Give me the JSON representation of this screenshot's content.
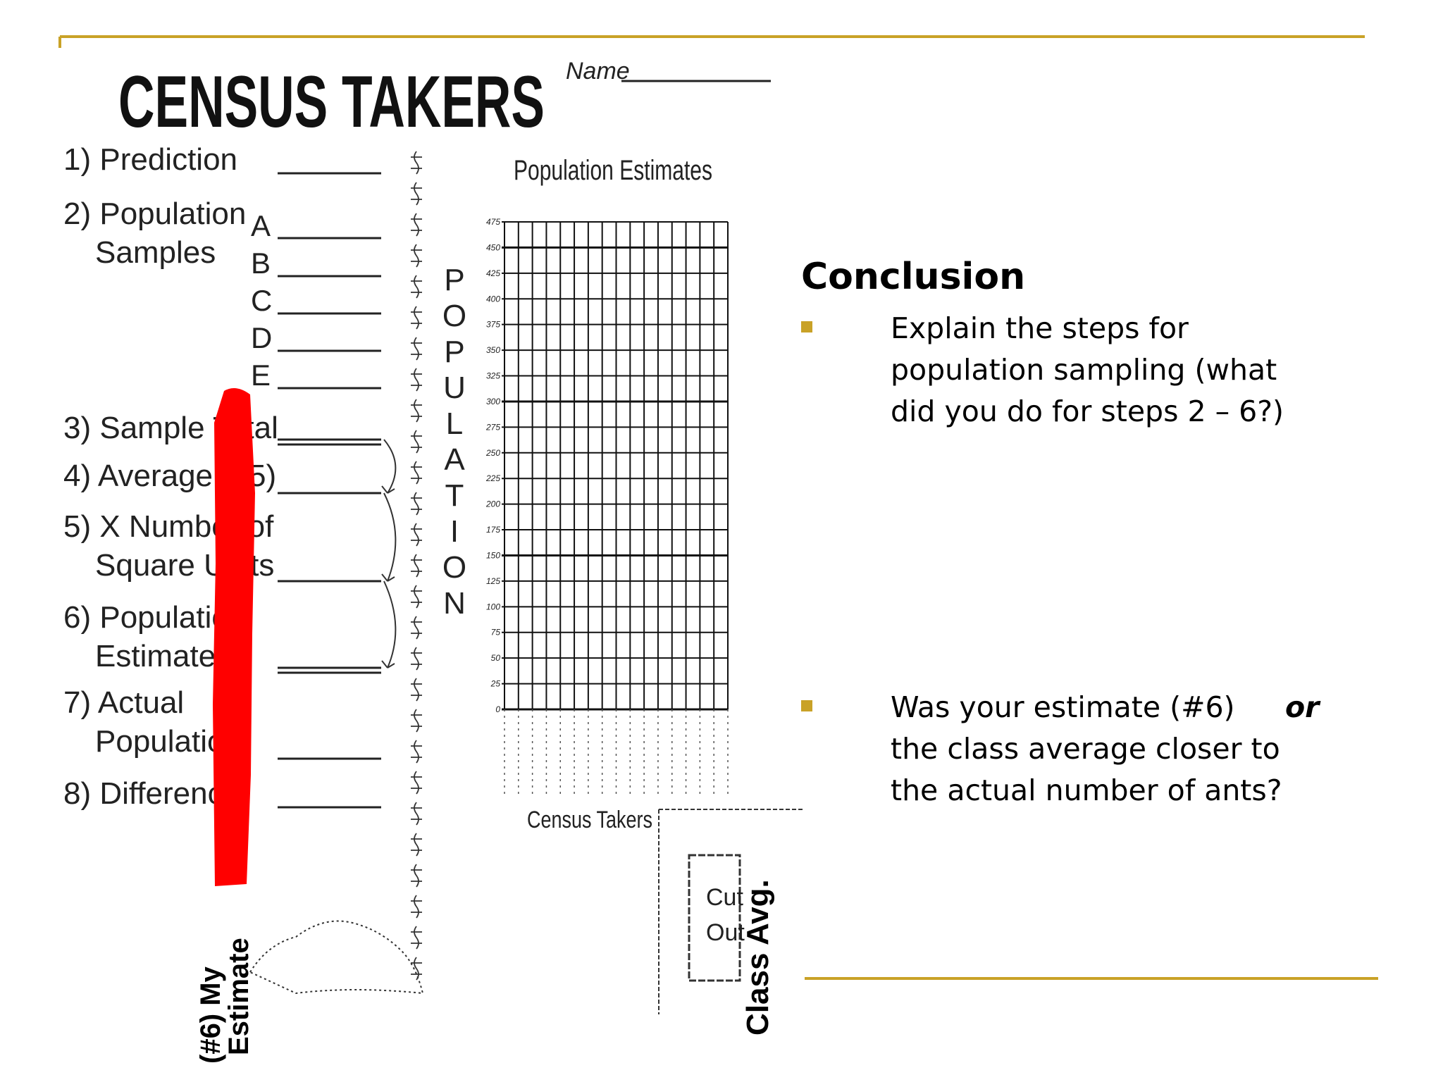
{
  "worksheet": {
    "title": "CENSUS TAKERS",
    "name_label": "Name",
    "steps": [
      [
        "1) Prediction"
      ],
      [
        "2) Population",
        "Samples"
      ],
      [
        "3) Sample Total"
      ],
      [
        "4) Average (÷5)"
      ],
      [
        "5) X Number of",
        "Square Units"
      ],
      [
        "6) Population",
        "Estimate"
      ],
      [
        "7) Actual",
        "Population"
      ],
      [
        "8) Difference"
      ]
    ],
    "sample_labels": [
      "A",
      "B",
      "C",
      "D",
      "E"
    ],
    "axis_label": "POPULATION",
    "graph_title": "Population Estimates",
    "graph_ticks": [
      0,
      25,
      50,
      75,
      100,
      125,
      150,
      175,
      200,
      225,
      250,
      275,
      300,
      325,
      350,
      375,
      400,
      425,
      450,
      475
    ],
    "footer_label": "Census Takers",
    "cutout": [
      "Cut",
      "Out"
    ]
  },
  "annotations": {
    "my_estimate": [
      "(#6) My",
      "Estimate"
    ],
    "class_avg": "Class Avg."
  },
  "conclusion": {
    "title": "Conclusion",
    "bullets": [
      [
        "Explain the steps for",
        "population sampling (what",
        "did you do for steps 2 – 6?)"
      ],
      [
        "Was your estimate (#6)",
        "or",
        "the class average closer to",
        "the actual number of ants?"
      ]
    ]
  }
}
